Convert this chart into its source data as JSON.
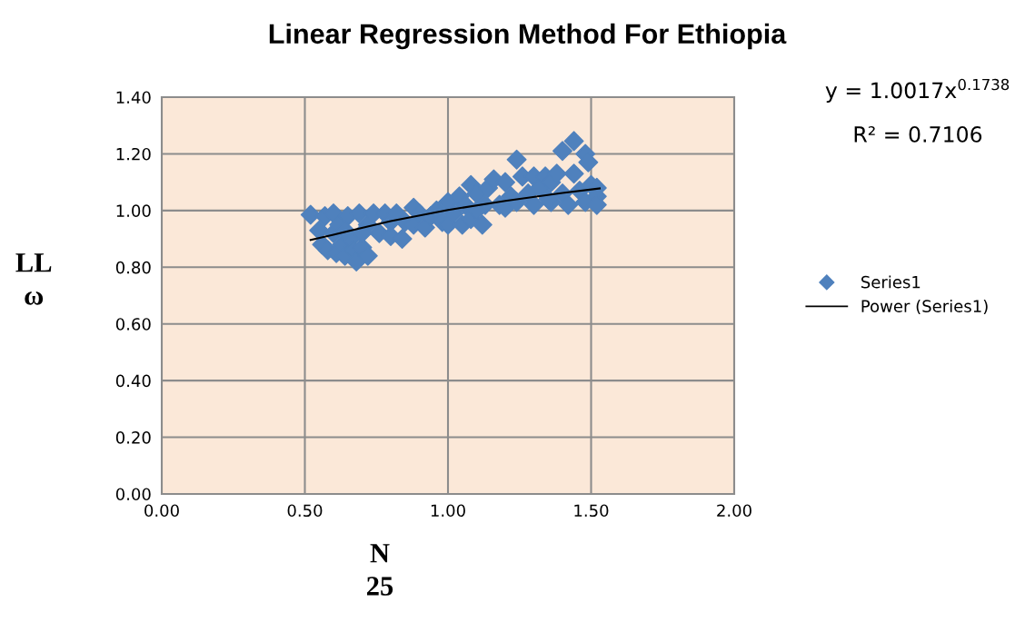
{
  "chart_data": {
    "type": "scatter",
    "title": "Linear Regression Method For Ethiopia",
    "xlabel": "N\n25",
    "ylabel": "LL\nω",
    "annotations": [
      "y = 1.0017x$^{0.1738}$",
      "R² = 0.7106"
    ],
    "xlim": [
      0,
      2
    ],
    "ylim": [
      0,
      1.4
    ],
    "xticks": [
      {
        "value": 0,
        "label": "0.00"
      },
      {
        "value": 0.5,
        "label": "0.50"
      },
      {
        "value": 1,
        "label": "1.00"
      },
      {
        "value": 1.5,
        "label": "1.50"
      },
      {
        "value": 2,
        "label": "2.00"
      }
    ],
    "yticks": [
      {
        "value": 0,
        "label": "0.00"
      },
      {
        "value": 0.2,
        "label": "0.20"
      },
      {
        "value": 0.4,
        "label": "0.40"
      },
      {
        "value": 0.6,
        "label": "0.60"
      },
      {
        "value": 0.8,
        "label": "0.80"
      },
      {
        "value": 1.0,
        "label": "1.00"
      },
      {
        "value": 1.2,
        "label": "1.20"
      },
      {
        "value": 1.4,
        "label": "1.40"
      }
    ],
    "grid": true,
    "legend": "right",
    "series": [
      {
        "name": "Series1",
        "marker": "diamond",
        "color": "#4f81bd",
        "x": [
          0.52,
          0.55,
          0.56,
          0.57,
          0.58,
          0.6,
          0.6,
          0.61,
          0.62,
          0.63,
          0.64,
          0.65,
          0.66,
          0.67,
          0.68,
          0.69,
          0.7,
          0.72,
          0.72,
          0.74,
          0.76,
          0.78,
          0.8,
          0.8,
          0.82,
          0.84,
          0.85,
          0.88,
          0.88,
          0.9,
          0.92,
          0.94,
          0.96,
          0.98,
          1.0,
          1.0,
          1.02,
          1.04,
          1.05,
          1.06,
          1.08,
          1.08,
          1.1,
          1.12,
          1.13,
          1.14,
          1.16,
          1.18,
          1.2,
          1.2,
          1.22,
          1.24,
          1.24,
          1.26,
          1.28,
          1.3,
          1.3,
          1.32,
          1.34,
          1.36,
          1.36,
          1.38,
          1.4,
          1.4,
          1.42,
          1.44,
          1.44,
          1.46,
          1.48,
          1.48,
          1.49,
          1.5,
          1.52,
          1.52,
          1.52,
          0.64,
          0.7,
          1.1,
          1.35
        ],
        "values": [
          0.985,
          0.93,
          0.88,
          0.98,
          0.86,
          0.99,
          0.92,
          0.85,
          0.95,
          0.88,
          0.84,
          0.98,
          0.9,
          0.86,
          0.82,
          0.99,
          0.87,
          0.84,
          0.95,
          0.99,
          0.92,
          0.99,
          0.91,
          0.96,
          0.99,
          0.9,
          0.96,
          1.01,
          0.95,
          0.99,
          0.94,
          0.98,
          1.0,
          0.96,
          1.03,
          0.95,
          0.99,
          1.05,
          0.95,
          1.02,
          1.09,
          0.97,
          1.06,
          0.95,
          1.02,
          1.08,
          1.11,
          1.02,
          1.1,
          1.01,
          1.05,
          1.18,
          1.03,
          1.12,
          1.06,
          1.12,
          1.02,
          1.08,
          1.12,
          1.03,
          1.1,
          1.13,
          1.21,
          1.06,
          1.02,
          1.245,
          1.13,
          1.07,
          1.2,
          1.03,
          1.17,
          1.09,
          1.08,
          1.05,
          1.02,
          0.93,
          0.92,
          1.0,
          1.04
        ]
      },
      {
        "name": "Power (Series1)",
        "type": "line",
        "color": "#000000",
        "marker": "none",
        "x": [
          0.52,
          0.6,
          0.8,
          1.0,
          1.2,
          1.4,
          1.53
        ],
        "values": [
          0.896,
          0.915,
          0.963,
          1.002,
          1.034,
          1.062,
          1.078
        ]
      }
    ]
  }
}
